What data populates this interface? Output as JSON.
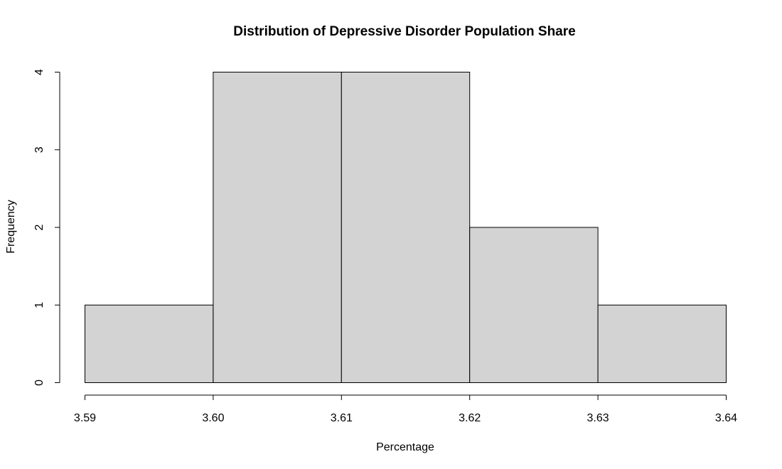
{
  "chart_data": {
    "type": "bar",
    "title": "Distribution of Depressive Disorder Population Share",
    "xlabel": "Percentage",
    "ylabel": "Frequency",
    "bins": [
      {
        "start": 3.59,
        "end": 3.6,
        "count": 1
      },
      {
        "start": 3.6,
        "end": 3.61,
        "count": 4
      },
      {
        "start": 3.61,
        "end": 3.62,
        "count": 4
      },
      {
        "start": 3.62,
        "end": 3.63,
        "count": 2
      },
      {
        "start": 3.63,
        "end": 3.64,
        "count": 1
      }
    ],
    "xticks": [
      "3.59",
      "3.60",
      "3.61",
      "3.62",
      "3.63",
      "3.64"
    ],
    "yticks": [
      "0",
      "1",
      "2",
      "3",
      "4"
    ],
    "xlim": [
      3.59,
      3.64
    ],
    "ylim": [
      0,
      4
    ],
    "grid": false,
    "bar_color": "#d3d3d3"
  }
}
